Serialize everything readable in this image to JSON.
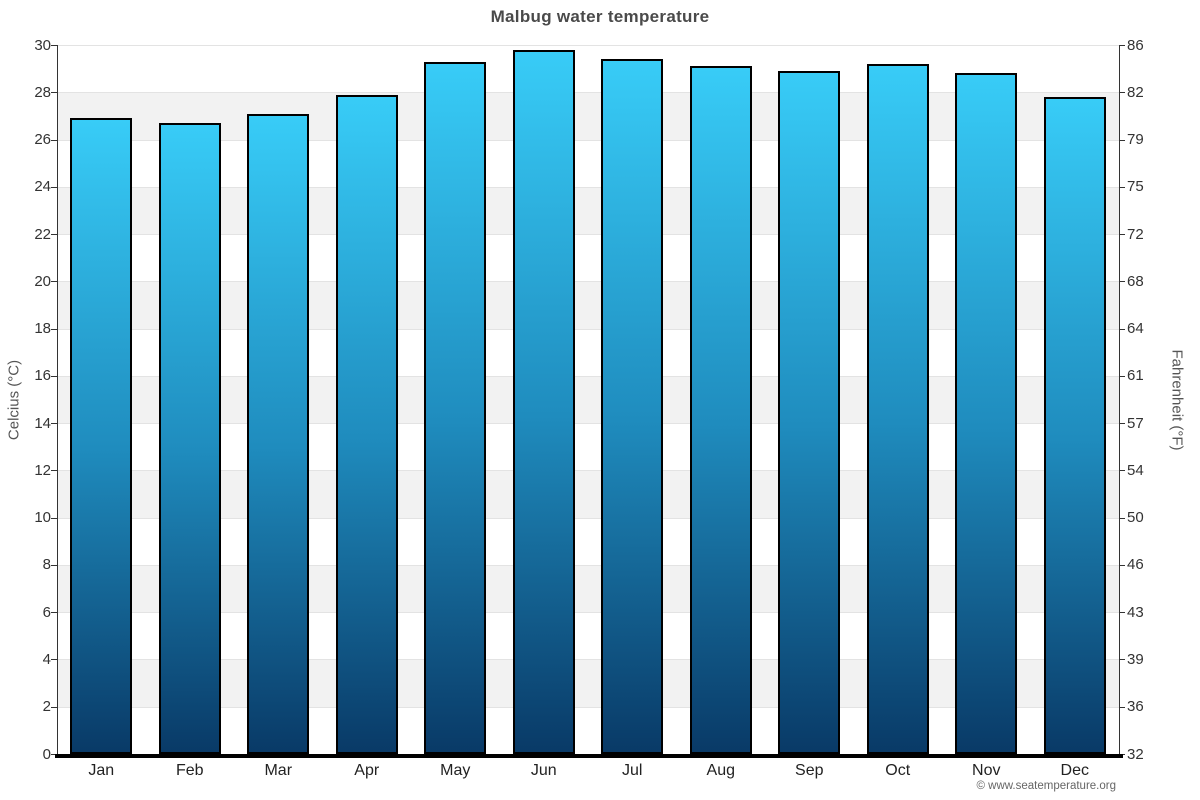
{
  "title": "Malbug water temperature",
  "watermark": "© www.seatemperature.org",
  "axes": {
    "left_label": "Celcius (°C)",
    "right_label": "Fahrenheit (°F)",
    "celsius_ticks": [
      30,
      28,
      26,
      24,
      22,
      20,
      18,
      16,
      14,
      12,
      10,
      8,
      6,
      4,
      2,
      0
    ],
    "fahrenheit_ticks": [
      86,
      82,
      79,
      75,
      72,
      68,
      64,
      61,
      57,
      54,
      50,
      46,
      43,
      39,
      36,
      32
    ]
  },
  "chart_data": {
    "type": "bar",
    "title": "Malbug water temperature",
    "categories": [
      "Jan",
      "Feb",
      "Mar",
      "Apr",
      "May",
      "Jun",
      "Jul",
      "Aug",
      "Sep",
      "Oct",
      "Nov",
      "Dec"
    ],
    "values": [
      26.9,
      26.7,
      27.1,
      27.9,
      29.3,
      29.8,
      29.4,
      29.1,
      28.9,
      29.2,
      28.8,
      27.8
    ],
    "unit": "°C",
    "ylabel_left": "Celcius (°C)",
    "ylabel_right": "Fahrenheit (°F)",
    "ylim": [
      0,
      30
    ],
    "y_tick_step": 2,
    "grid": true,
    "legend": false,
    "background_bands": true
  },
  "colors": {
    "bar_gradient_top": "#38ccf7",
    "bar_gradient_mid": "#1f8cbe",
    "bar_gradient_bottom": "#093a67",
    "bar_border": "#000000",
    "band_gray": "#f2f2f2",
    "band_white": "#ffffff",
    "gridline": "#e3e3e3",
    "axis_line": "#333333",
    "baseline": "#000000",
    "title_color": "#4a4a4a",
    "tick_label_color": "#333333",
    "month_label_color": "#222222",
    "axis_title_color": "#555555",
    "watermark_color": "#666666"
  }
}
